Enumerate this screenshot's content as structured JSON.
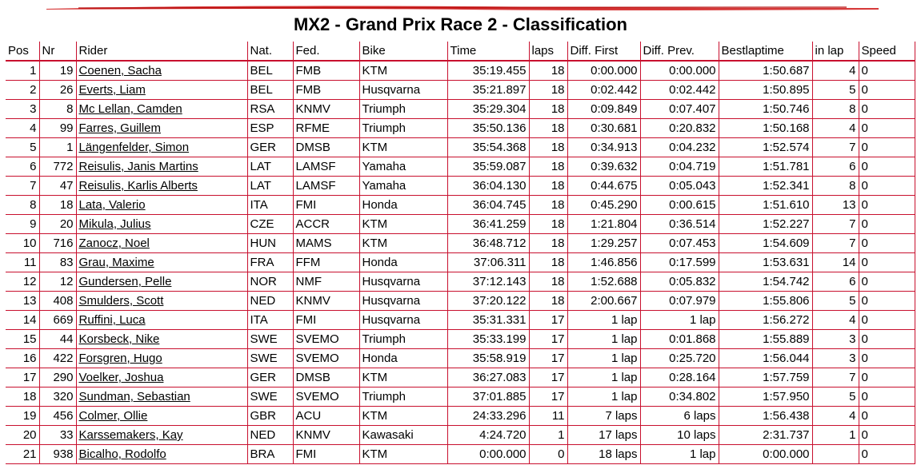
{
  "title": "MX2 - Grand Prix Race 2 - Classification",
  "colors": {
    "accent": "#c8102e"
  },
  "columns": [
    "Pos",
    "Nr",
    "Rider",
    "Nat.",
    "Fed.",
    "Bike",
    "Time",
    "laps",
    "Diff. First",
    "Diff. Prev.",
    "Bestlaptime",
    "in lap",
    "Speed"
  ],
  "rows": [
    {
      "pos": "1",
      "nr": "19",
      "rider": "Coenen, Sacha",
      "nat": "BEL",
      "fed": "FMB",
      "bike": "KTM",
      "time": "35:19.455",
      "laps": "18",
      "diff_first": "0:00.000",
      "diff_prev": "0:00.000",
      "best": "1:50.687",
      "in_lap": "4",
      "speed": "0"
    },
    {
      "pos": "2",
      "nr": "26",
      "rider": "Everts, Liam",
      "nat": "BEL",
      "fed": "FMB",
      "bike": "Husqvarna",
      "time": "35:21.897",
      "laps": "18",
      "diff_first": "0:02.442",
      "diff_prev": "0:02.442",
      "best": "1:50.895",
      "in_lap": "5",
      "speed": "0"
    },
    {
      "pos": "3",
      "nr": "8",
      "rider": "Mc Lellan, Camden",
      "nat": "RSA",
      "fed": "KNMV",
      "bike": "Triumph",
      "time": "35:29.304",
      "laps": "18",
      "diff_first": "0:09.849",
      "diff_prev": "0:07.407",
      "best": "1:50.746",
      "in_lap": "8",
      "speed": "0"
    },
    {
      "pos": "4",
      "nr": "99",
      "rider": "Farres, Guillem",
      "nat": "ESP",
      "fed": "RFME",
      "bike": "Triumph",
      "time": "35:50.136",
      "laps": "18",
      "diff_first": "0:30.681",
      "diff_prev": "0:20.832",
      "best": "1:50.168",
      "in_lap": "4",
      "speed": "0"
    },
    {
      "pos": "5",
      "nr": "1",
      "rider": "Längenfelder, Simon",
      "nat": "GER",
      "fed": "DMSB",
      "bike": "KTM",
      "time": "35:54.368",
      "laps": "18",
      "diff_first": "0:34.913",
      "diff_prev": "0:04.232",
      "best": "1:52.574",
      "in_lap": "7",
      "speed": "0"
    },
    {
      "pos": "6",
      "nr": "772",
      "rider": "Reisulis, Janis Martins",
      "nat": "LAT",
      "fed": "LAMSF",
      "bike": "Yamaha",
      "time": "35:59.087",
      "laps": "18",
      "diff_first": "0:39.632",
      "diff_prev": "0:04.719",
      "best": "1:51.781",
      "in_lap": "6",
      "speed": "0"
    },
    {
      "pos": "7",
      "nr": "47",
      "rider": "Reisulis, Karlis Alberts",
      "nat": "LAT",
      "fed": "LAMSF",
      "bike": "Yamaha",
      "time": "36:04.130",
      "laps": "18",
      "diff_first": "0:44.675",
      "diff_prev": "0:05.043",
      "best": "1:52.341",
      "in_lap": "8",
      "speed": "0"
    },
    {
      "pos": "8",
      "nr": "18",
      "rider": "Lata, Valerio",
      "nat": "ITA",
      "fed": "FMI",
      "bike": "Honda",
      "time": "36:04.745",
      "laps": "18",
      "diff_first": "0:45.290",
      "diff_prev": "0:00.615",
      "best": "1:51.610",
      "in_lap": "13",
      "speed": "0"
    },
    {
      "pos": "9",
      "nr": "20",
      "rider": "Mikula, Julius",
      "nat": "CZE",
      "fed": "ACCR",
      "bike": "KTM",
      "time": "36:41.259",
      "laps": "18",
      "diff_first": "1:21.804",
      "diff_prev": "0:36.514",
      "best": "1:52.227",
      "in_lap": "7",
      "speed": "0"
    },
    {
      "pos": "10",
      "nr": "716",
      "rider": "Zanocz, Noel",
      "nat": "HUN",
      "fed": "MAMS",
      "bike": "KTM",
      "time": "36:48.712",
      "laps": "18",
      "diff_first": "1:29.257",
      "diff_prev": "0:07.453",
      "best": "1:54.609",
      "in_lap": "7",
      "speed": "0"
    },
    {
      "pos": "11",
      "nr": "83",
      "rider": "Grau, Maxime",
      "nat": "FRA",
      "fed": "FFM",
      "bike": "Honda",
      "time": "37:06.311",
      "laps": "18",
      "diff_first": "1:46.856",
      "diff_prev": "0:17.599",
      "best": "1:53.631",
      "in_lap": "14",
      "speed": "0"
    },
    {
      "pos": "12",
      "nr": "12",
      "rider": "Gundersen, Pelle",
      "nat": "NOR",
      "fed": "NMF",
      "bike": "Husqvarna",
      "time": "37:12.143",
      "laps": "18",
      "diff_first": "1:52.688",
      "diff_prev": "0:05.832",
      "best": "1:54.742",
      "in_lap": "6",
      "speed": "0"
    },
    {
      "pos": "13",
      "nr": "408",
      "rider": "Smulders, Scott",
      "nat": "NED",
      "fed": "KNMV",
      "bike": "Husqvarna",
      "time": "37:20.122",
      "laps": "18",
      "diff_first": "2:00.667",
      "diff_prev": "0:07.979",
      "best": "1:55.806",
      "in_lap": "5",
      "speed": "0"
    },
    {
      "pos": "14",
      "nr": "669",
      "rider": "Ruffini, Luca",
      "nat": "ITA",
      "fed": "FMI",
      "bike": "Husqvarna",
      "time": "35:31.331",
      "laps": "17",
      "diff_first": "1 lap",
      "diff_prev": "1 lap",
      "best": "1:56.272",
      "in_lap": "4",
      "speed": "0"
    },
    {
      "pos": "15",
      "nr": "44",
      "rider": "Korsbeck, Nike",
      "nat": "SWE",
      "fed": "SVEMO",
      "bike": "Triumph",
      "time": "35:33.199",
      "laps": "17",
      "diff_first": "1 lap",
      "diff_prev": "0:01.868",
      "best": "1:55.889",
      "in_lap": "3",
      "speed": "0"
    },
    {
      "pos": "16",
      "nr": "422",
      "rider": "Forsgren, Hugo",
      "nat": "SWE",
      "fed": "SVEMO",
      "bike": "Honda",
      "time": "35:58.919",
      "laps": "17",
      "diff_first": "1 lap",
      "diff_prev": "0:25.720",
      "best": "1:56.044",
      "in_lap": "3",
      "speed": "0"
    },
    {
      "pos": "17",
      "nr": "290",
      "rider": "Voelker, Joshua",
      "nat": "GER",
      "fed": "DMSB",
      "bike": "KTM",
      "time": "36:27.083",
      "laps": "17",
      "diff_first": "1 lap",
      "diff_prev": "0:28.164",
      "best": "1:57.759",
      "in_lap": "7",
      "speed": "0"
    },
    {
      "pos": "18",
      "nr": "320",
      "rider": "Sundman, Sebastian",
      "nat": "SWE",
      "fed": "SVEMO",
      "bike": "Triumph",
      "time": "37:01.885",
      "laps": "17",
      "diff_first": "1 lap",
      "diff_prev": "0:34.802",
      "best": "1:57.950",
      "in_lap": "5",
      "speed": "0"
    },
    {
      "pos": "19",
      "nr": "456",
      "rider": "Colmer, Ollie",
      "nat": "GBR",
      "fed": "ACU",
      "bike": "KTM",
      "time": "24:33.296",
      "laps": "11",
      "diff_first": "7 laps",
      "diff_prev": "6 laps",
      "best": "1:56.438",
      "in_lap": "4",
      "speed": "0"
    },
    {
      "pos": "20",
      "nr": "33",
      "rider": "Karssemakers, Kay",
      "nat": "NED",
      "fed": "KNMV",
      "bike": "Kawasaki",
      "time": "4:24.720",
      "laps": "1",
      "diff_first": "17 laps",
      "diff_prev": "10 laps",
      "best": "2:31.737",
      "in_lap": "1",
      "speed": "0"
    },
    {
      "pos": "21",
      "nr": "938",
      "rider": "Bicalho, Rodolfo",
      "nat": "BRA",
      "fed": "FMI",
      "bike": "KTM",
      "time": "0:00.000",
      "laps": "0",
      "diff_first": "18 laps",
      "diff_prev": "1 lap",
      "best": "0:00.000",
      "in_lap": "",
      "speed": "0"
    }
  ]
}
